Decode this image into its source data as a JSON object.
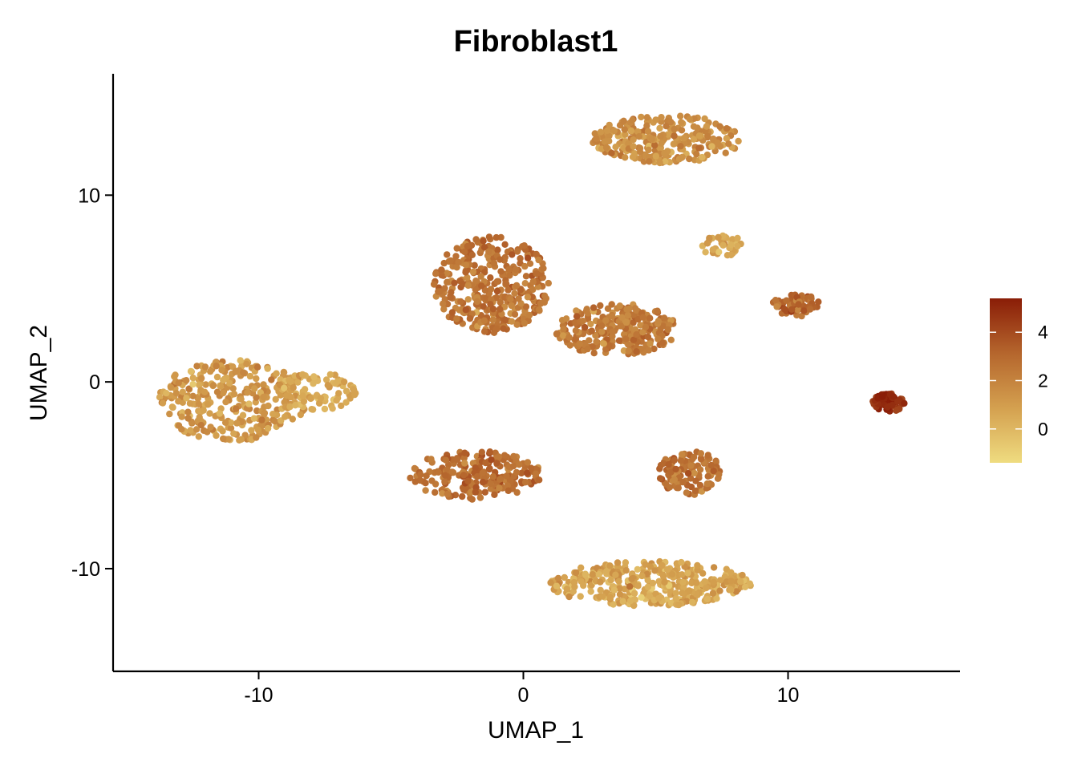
{
  "chart_data": {
    "type": "scatter",
    "title": "Fibroblast1",
    "xlabel": "UMAP_1",
    "ylabel": "UMAP_2",
    "xlim": [
      -15.5,
      16.5
    ],
    "ylim": [
      -15.5,
      16.5
    ],
    "x_ticks": [
      {
        "value": -10,
        "label": "-10"
      },
      {
        "value": 0,
        "label": "0"
      },
      {
        "value": 10,
        "label": "10"
      }
    ],
    "y_ticks": [
      {
        "value": 10,
        "label": "10"
      },
      {
        "value": 0,
        "label": "0"
      },
      {
        "value": -10,
        "label": "-10"
      }
    ],
    "colorbar": {
      "min": -1.4,
      "max": 5.4,
      "ticks": [
        {
          "value": 4,
          "label": "4"
        },
        {
          "value": 2,
          "label": "2"
        },
        {
          "value": 0,
          "label": "0"
        }
      ],
      "colors": [
        "#efdc80",
        "#d4a04f",
        "#b5662d",
        "#8a1d07"
      ]
    },
    "clusters": [
      {
        "center": [
          -11.0,
          -1.0
        ],
        "spread": [
          2.8,
          2.2
        ],
        "expression": 1.2,
        "n": 320
      },
      {
        "center": [
          -7.8,
          -0.5
        ],
        "spread": [
          1.6,
          1.0
        ],
        "expression": 0.4,
        "n": 90
      },
      {
        "center": [
          -1.2,
          5.2
        ],
        "spread": [
          2.2,
          2.6
        ],
        "expression": 2.6,
        "n": 360
      },
      {
        "center": [
          3.5,
          2.8
        ],
        "spread": [
          2.3,
          1.4
        ],
        "expression": 2.3,
        "n": 260
      },
      {
        "center": [
          5.4,
          13.0
        ],
        "spread": [
          2.8,
          1.3
        ],
        "expression": 1.5,
        "n": 260
      },
      {
        "center": [
          7.5,
          7.3
        ],
        "spread": [
          0.8,
          0.6
        ],
        "expression": 0.6,
        "n": 40
      },
      {
        "center": [
          10.3,
          4.1
        ],
        "spread": [
          0.9,
          0.6
        ],
        "expression": 2.9,
        "n": 70
      },
      {
        "center": [
          13.8,
          -1.1
        ],
        "spread": [
          0.6,
          0.5
        ],
        "expression": 5.0,
        "n": 70
      },
      {
        "center": [
          -1.8,
          -5.0
        ],
        "spread": [
          2.5,
          1.3
        ],
        "expression": 2.8,
        "n": 220
      },
      {
        "center": [
          6.3,
          -4.9
        ],
        "spread": [
          1.2,
          1.2
        ],
        "expression": 2.7,
        "n": 120
      },
      {
        "center": [
          4.8,
          -10.8
        ],
        "spread": [
          3.8,
          1.2
        ],
        "expression": 0.7,
        "n": 380
      }
    ]
  }
}
